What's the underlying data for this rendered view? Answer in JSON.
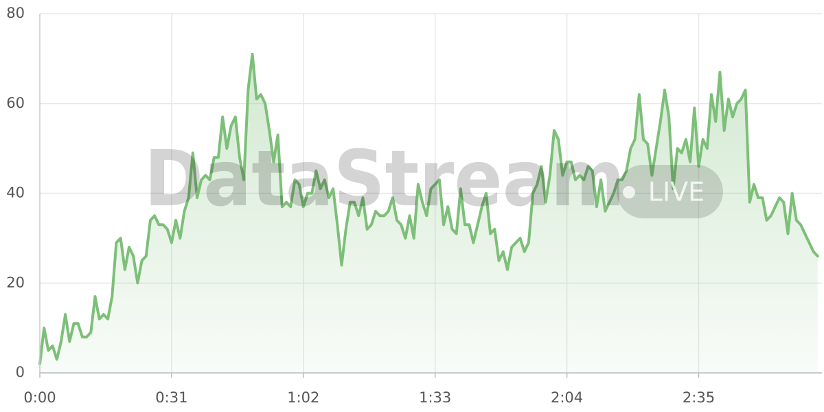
{
  "chart_data": {
    "type": "area",
    "watermark": "DataStream",
    "badge": "LIVE",
    "color": "#7dbf78",
    "grid": true,
    "x": [
      0,
      1,
      2,
      3,
      4,
      5,
      6,
      7,
      8,
      9,
      10,
      11,
      12,
      13,
      14,
      15,
      16,
      17,
      18,
      19,
      20,
      21,
      22,
      23,
      24,
      25,
      26,
      27,
      28,
      29,
      30,
      31,
      32,
      33,
      34,
      35,
      36,
      37,
      38,
      39,
      40,
      41,
      42,
      43,
      44,
      45,
      46,
      47,
      48,
      49,
      50,
      51,
      52,
      53,
      54,
      55,
      56,
      57,
      58,
      59,
      60,
      61,
      62,
      63,
      64,
      65,
      66,
      67,
      68,
      69,
      70,
      71,
      72,
      73,
      74,
      75,
      76,
      77,
      78,
      79,
      80,
      81,
      82,
      83,
      84,
      85,
      86,
      87,
      88,
      89,
      90,
      91,
      92,
      93,
      94,
      95,
      96,
      97,
      98,
      99,
      100,
      101,
      102,
      103,
      104,
      105,
      106,
      107,
      108,
      109,
      110,
      111,
      112,
      113,
      114,
      115,
      116,
      117,
      118,
      119,
      120,
      121,
      122,
      123,
      124,
      125,
      126,
      127,
      128,
      129,
      130,
      131,
      132,
      133,
      134,
      135,
      136,
      137,
      138,
      139,
      140,
      141,
      142,
      143,
      144,
      145,
      146,
      147,
      148,
      149,
      150,
      151,
      152,
      153,
      154,
      155,
      156,
      157,
      158,
      159,
      160,
      161,
      162,
      163,
      164,
      165,
      166,
      167,
      168,
      169,
      170,
      171,
      172,
      173,
      174,
      175,
      176,
      177,
      178,
      179,
      180,
      181,
      182,
      183
    ],
    "values": [
      2,
      10,
      5,
      6,
      3,
      7,
      13,
      7,
      11,
      11,
      8,
      8,
      9,
      17,
      12,
      13,
      12,
      17,
      29,
      30,
      23,
      28,
      26,
      20,
      25,
      26,
      34,
      35,
      33,
      33,
      32,
      29,
      34,
      30,
      36,
      39,
      49,
      39,
      43,
      44,
      43,
      48,
      48,
      57,
      50,
      55,
      57,
      48,
      43,
      63,
      71,
      61,
      62,
      60,
      54,
      47,
      53,
      37,
      38,
      37,
      43,
      42,
      37,
      40,
      40,
      45,
      41,
      43,
      39,
      41,
      33,
      24,
      32,
      38,
      38,
      35,
      39,
      32,
      33,
      36,
      35,
      35,
      36,
      39,
      34,
      33,
      30,
      35,
      30,
      42,
      38,
      35,
      41,
      42,
      43,
      33,
      37,
      32,
      31,
      41,
      33,
      33,
      29,
      33,
      37,
      40,
      31,
      32,
      25,
      27,
      23,
      28,
      29,
      30,
      27,
      29,
      40,
      42,
      46,
      38,
      44,
      54,
      52,
      44,
      47,
      47,
      43,
      44,
      43,
      46,
      45,
      37,
      43,
      36,
      38,
      40,
      43,
      43,
      45,
      50,
      52,
      62,
      52,
      51,
      44,
      50,
      56,
      63,
      57,
      41,
      50,
      49,
      52,
      47,
      59,
      46,
      52,
      50,
      62,
      56,
      67,
      54,
      61,
      57,
      60,
      61,
      63,
      38,
      42,
      39,
      39,
      34,
      35,
      37,
      39,
      38,
      31,
      40,
      34,
      33,
      31,
      29,
      27,
      26
    ],
    "xlim": [
      0,
      184
    ],
    "xticks": [
      {
        "value": 0,
        "label": "0:00"
      },
      {
        "value": 31,
        "label": "0:31"
      },
      {
        "value": 62,
        "label": "1:02"
      },
      {
        "value": 93,
        "label": "1:33"
      },
      {
        "value": 124,
        "label": "2:04"
      },
      {
        "value": 155,
        "label": "2:35"
      }
    ],
    "ylim": [
      0,
      80
    ],
    "yticks": [
      0,
      20,
      40,
      60,
      80
    ]
  }
}
